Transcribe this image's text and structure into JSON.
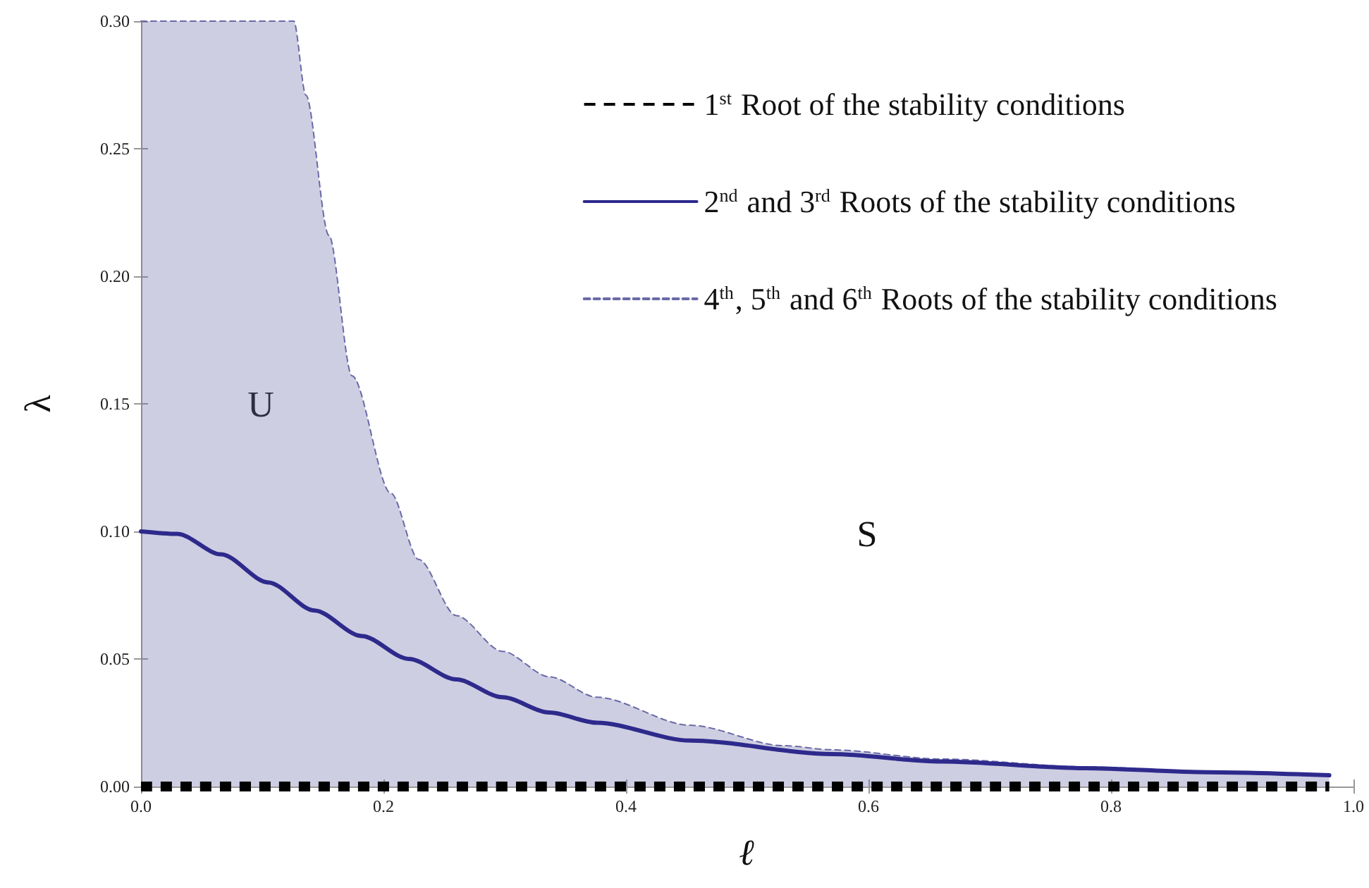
{
  "chart_data": {
    "type": "line",
    "xlabel": "ℓ",
    "ylabel": "λ",
    "xlim": [
      0,
      1
    ],
    "ylim": [
      0,
      0.3
    ],
    "xticks": [
      {
        "value": 0,
        "label": "0.0"
      },
      0.2,
      0.4,
      0.6,
      0.8,
      {
        "value": 1,
        "label": "1.0"
      }
    ],
    "yticks": [
      {
        "value": 0,
        "label": "0.00"
      },
      0.05,
      {
        "value": 0.1,
        "label": "0.10"
      },
      0.15,
      {
        "value": 0.2,
        "label": "0.20"
      },
      0.25,
      {
        "value": 0.3,
        "label": "0.30"
      }
    ],
    "grid": false,
    "legend": "top right",
    "marker": "none",
    "series": [
      {
        "name": "1$^{st}$ Root of the stability conditions",
        "color": "#000000",
        "line_style": "dotted",
        "x": [
          0,
          0.98
        ],
        "values": [
          0,
          0
        ]
      },
      {
        "name": "2$^{nd}$ and 3$^{rd}$ Roots of the stability conditions",
        "color": "#2e2a8c",
        "line_style": "solid",
        "x": [
          0,
          0.03,
          0.066,
          0.105,
          0.143,
          0.182,
          0.221,
          0.26,
          0.298,
          0.337,
          0.376,
          0.453,
          0.57,
          0.66,
          0.779,
          0.88,
          0.98
        ],
        "values": [
          0.1,
          0.099,
          0.091,
          0.08,
          0.069,
          0.059,
          0.05,
          0.042,
          0.035,
          0.029,
          0.025,
          0.018,
          0.0127,
          0.0098,
          0.0072,
          0.0056,
          0.0044
        ]
      },
      {
        "name": "4$^{th}$, 5$^{th}$ and 6$^{th}$ Roots of the stability conditions",
        "type": "area",
        "color": "#6a6aa8",
        "line_style": "dashed",
        "x": [
          0,
          0.126,
          0.136,
          0.155,
          0.174,
          0.206,
          0.229,
          0.26,
          0.298,
          0.337,
          0.376,
          0.453,
          0.53,
          0.57,
          0.66,
          0.779,
          0.88,
          0.98
        ],
        "values": [
          0.3,
          0.3,
          0.271,
          0.216,
          0.161,
          0.115,
          0.089,
          0.067,
          0.053,
          0.043,
          0.035,
          0.024,
          0.016,
          0.0144,
          0.0108,
          0.0077,
          0.0059,
          0.0045
        ]
      }
    ],
    "annotations": [
      "U",
      "S"
    ]
  }
}
